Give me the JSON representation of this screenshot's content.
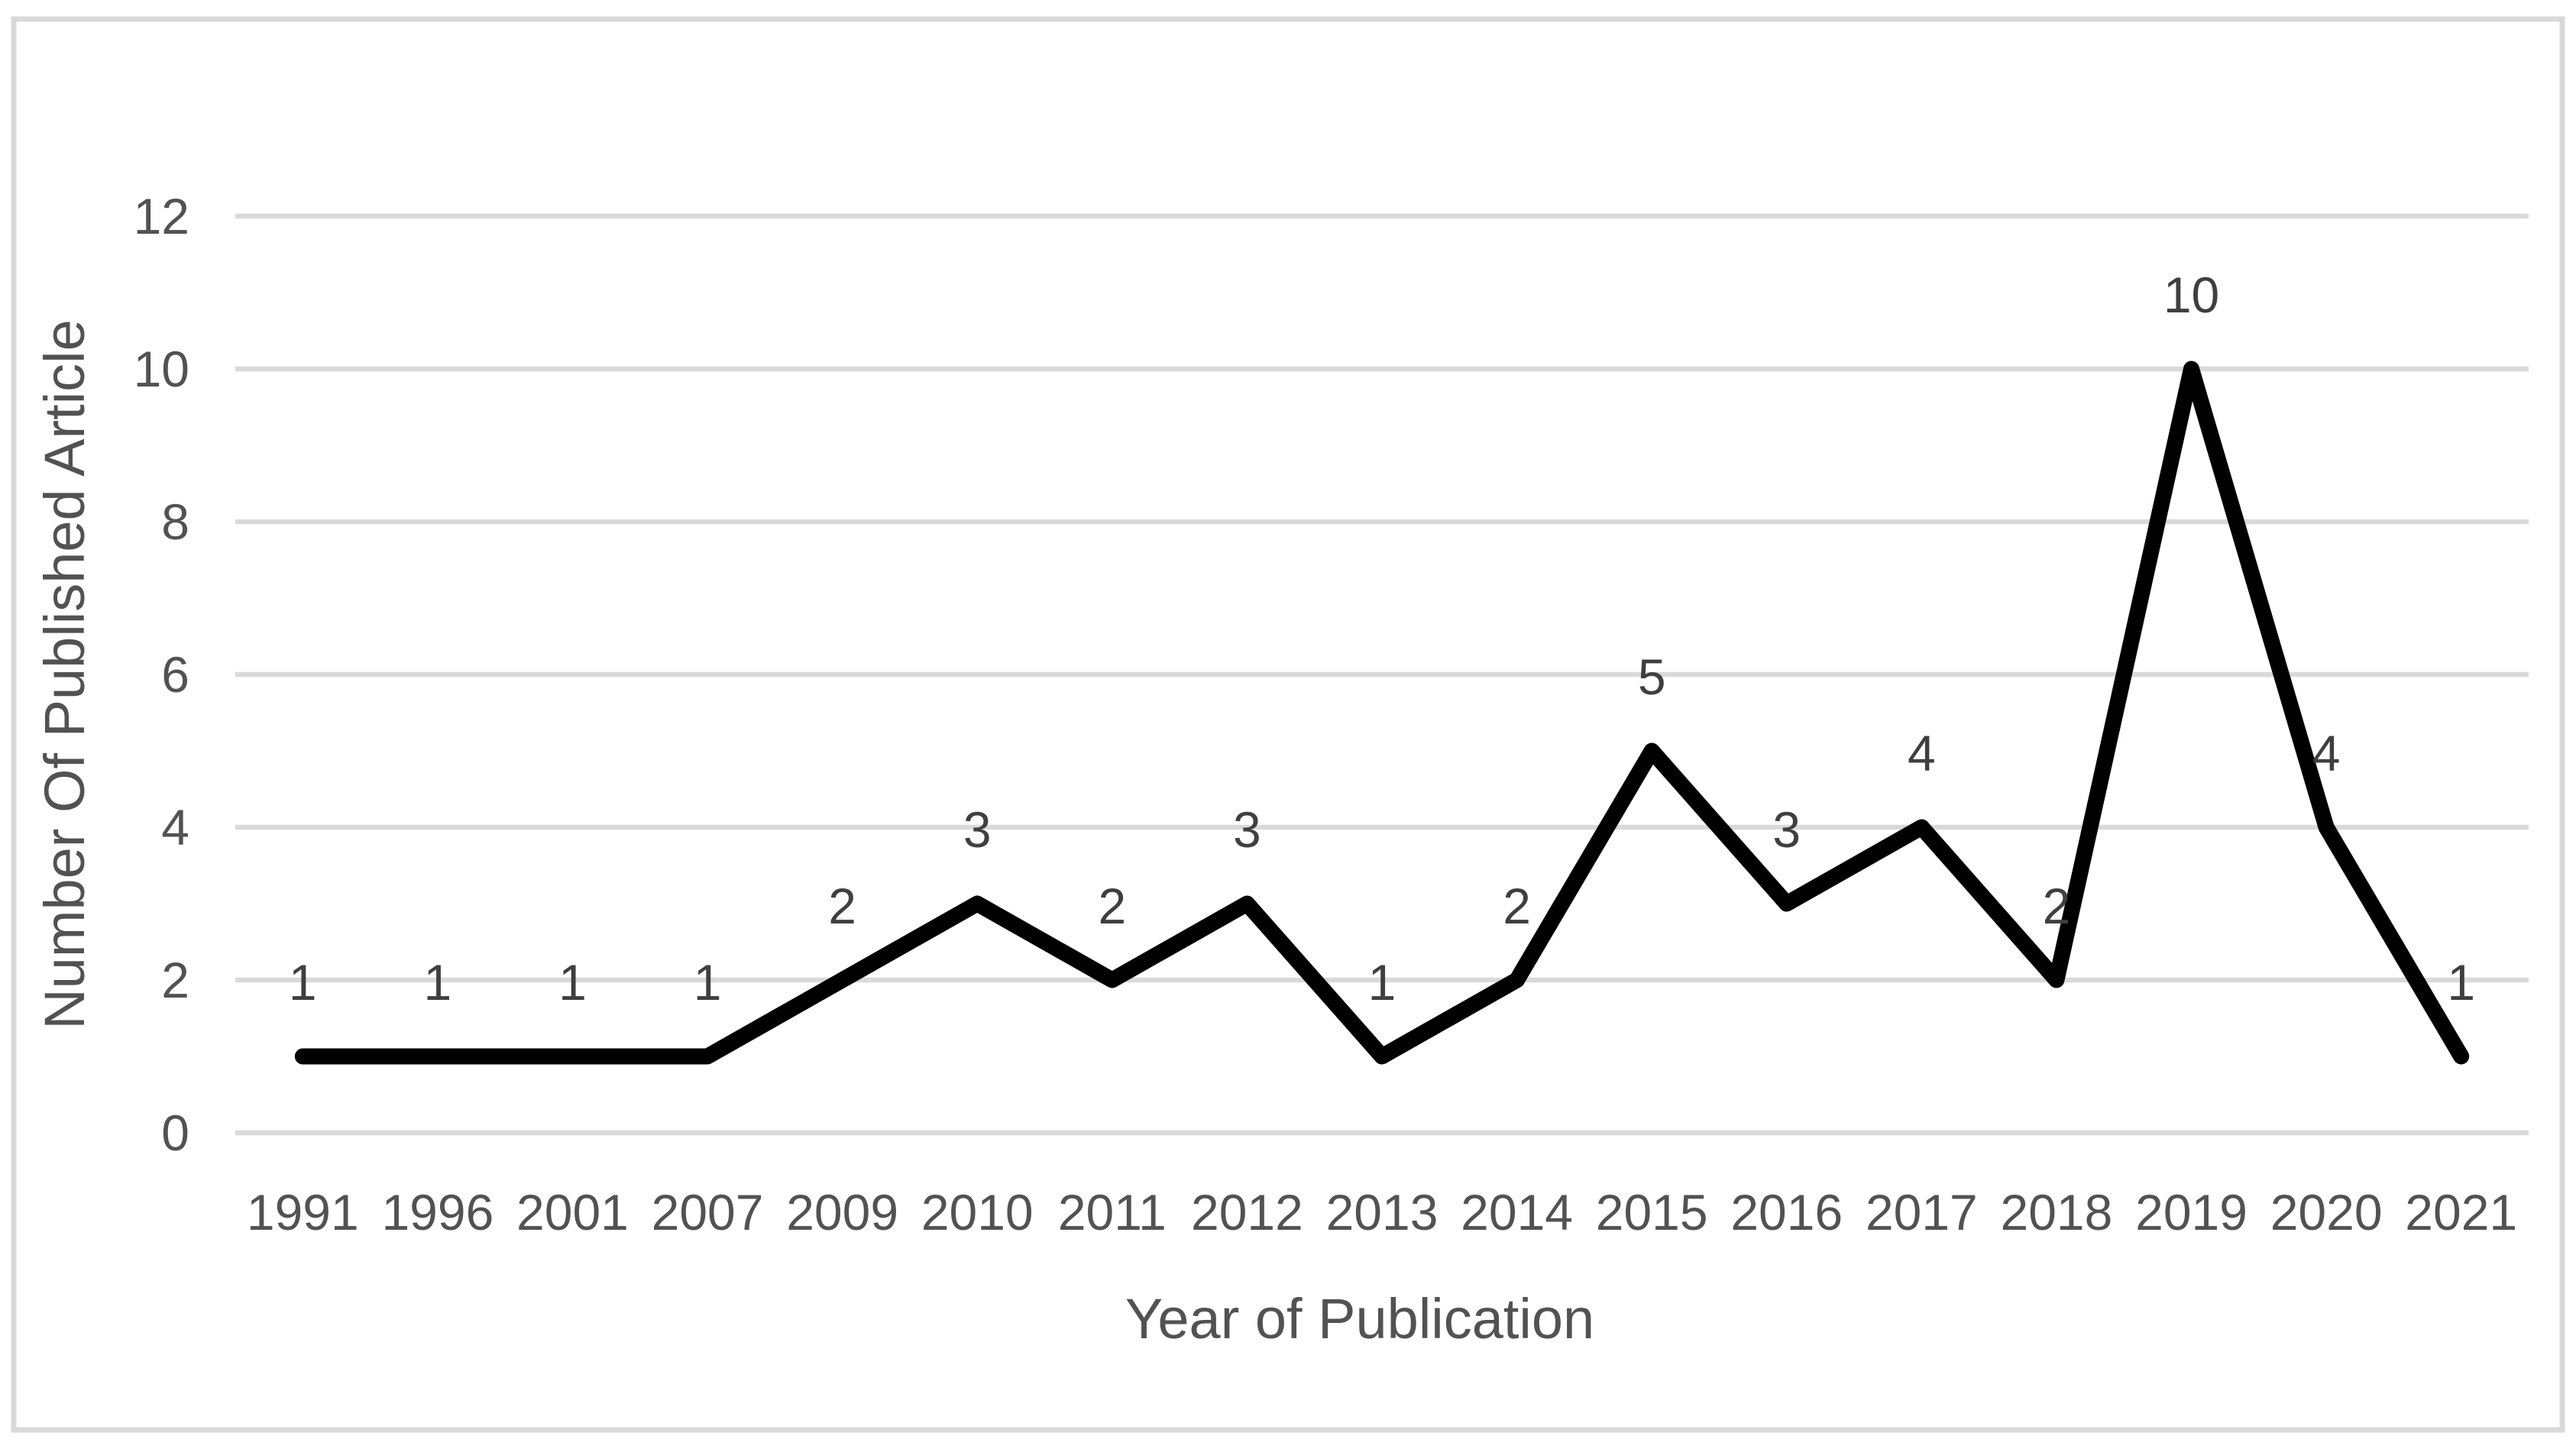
{
  "chart_data": {
    "type": "line",
    "title": "",
    "categories": [
      "1991",
      "1996",
      "2001",
      "2007",
      "2009",
      "2010",
      "2011",
      "2012",
      "2013",
      "2014",
      "2015",
      "2016",
      "2017",
      "2018",
      "2019",
      "2020",
      "2021"
    ],
    "values": [
      1,
      1,
      1,
      1,
      2,
      3,
      2,
      3,
      1,
      2,
      5,
      3,
      4,
      2,
      10,
      4,
      1
    ],
    "xlabel": "Year of Publication",
    "ylabel": "Number Of Published Article",
    "ylim": [
      0,
      12
    ],
    "yticks": [
      0,
      2,
      4,
      6,
      8,
      10,
      12
    ],
    "grid": "horizontal",
    "legend_position": "none",
    "data_labels_visible": true,
    "colors": {
      "line": "#000000",
      "gridline": "#d9d9d9",
      "chart_border": "#d9d9d9",
      "axis_text": "#525252",
      "data_label_text": "#3f3f3f",
      "background": "#ffffff"
    }
  }
}
